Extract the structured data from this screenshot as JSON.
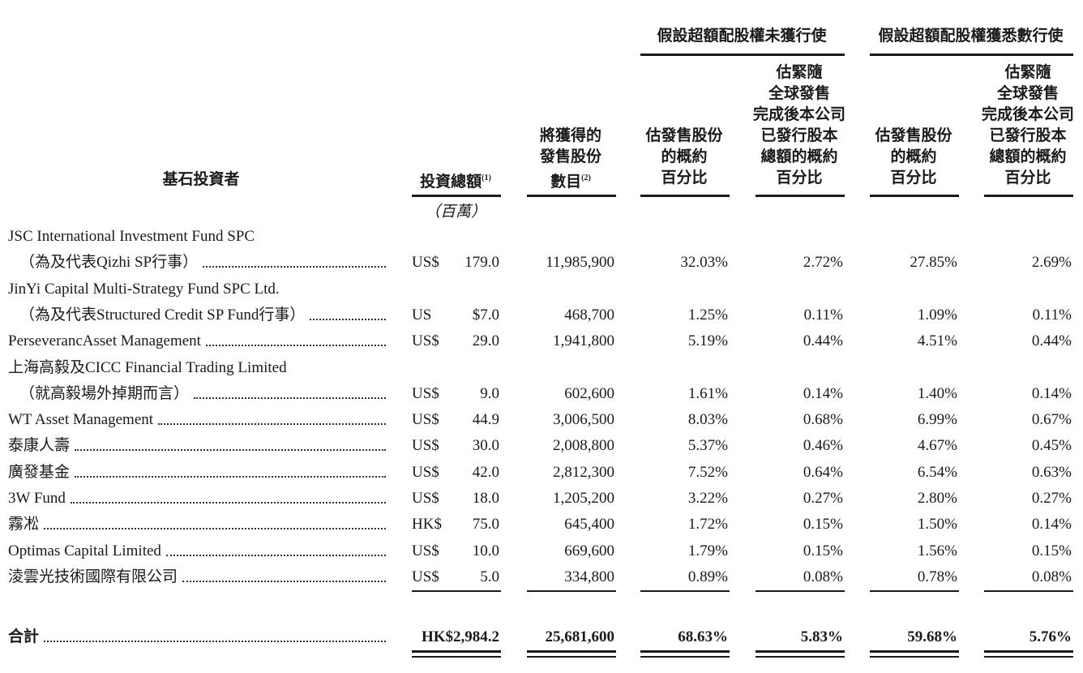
{
  "header": {
    "investor": "基石投資者",
    "amount": "投資總額",
    "amount_note": "(1)",
    "shares": [
      "將獲得的",
      "發售股份",
      "數目"
    ],
    "shares_note": "(2)",
    "unit": "（百萬）",
    "groups": [
      {
        "title": "假設超額配股權未獲行使",
        "columns": [
          [
            "估發售股份",
            "的概約",
            "百分比"
          ],
          [
            "估緊隨",
            "全球發售",
            "完成後本公司",
            "已發行股本",
            "總額的概約",
            "百分比"
          ]
        ]
      },
      {
        "title": "假設超額配股權獲悉數行使",
        "columns": [
          [
            "估發售股份",
            "的概約",
            "百分比"
          ],
          [
            "估緊隨",
            "全球發售",
            "完成後本公司",
            "已發行股本",
            "總額的概約",
            "百分比"
          ]
        ]
      }
    ]
  },
  "rows": [
    {
      "name": [
        "JSC International Investment Fund SPC",
        "（為及代表Qizhi SP行事）"
      ],
      "currency": "US$",
      "amount": "179.0",
      "shares": "11,985,900",
      "values": [
        "32.03%",
        "2.72%",
        "27.85%",
        "2.69%"
      ]
    },
    {
      "name": [
        "JinYi Capital Multi-Strategy Fund SPC Ltd.",
        "（為及代表Structured Credit SP Fund行事）"
      ],
      "currency": "US",
      "amount": "$7.0",
      "shares": "468,700",
      "values": [
        "1.25%",
        "0.11%",
        "1.09%",
        "0.11%"
      ]
    },
    {
      "name": [
        "PerseverancAsset Management"
      ],
      "currency": "US$",
      "amount": "29.0",
      "shares": "1,941,800",
      "values": [
        "5.19%",
        "0.44%",
        "4.51%",
        "0.44%"
      ]
    },
    {
      "name": [
        "上海高毅及CICC Financial Trading Limited",
        "（就高毅場外掉期而言）"
      ],
      "currency": "US$",
      "amount": "9.0",
      "shares": "602,600",
      "values": [
        "1.61%",
        "0.14%",
        "1.40%",
        "0.14%"
      ]
    },
    {
      "name": [
        "WT Asset Management"
      ],
      "currency": "US$",
      "amount": "44.9",
      "shares": "3,006,500",
      "values": [
        "8.03%",
        "0.68%",
        "6.99%",
        "0.67%"
      ]
    },
    {
      "name": [
        "泰康人壽"
      ],
      "currency": "US$",
      "amount": "30.0",
      "shares": "2,008,800",
      "values": [
        "5.37%",
        "0.46%",
        "4.67%",
        "0.45%"
      ]
    },
    {
      "name": [
        "廣發基金"
      ],
      "currency": "US$",
      "amount": "42.0",
      "shares": "2,812,300",
      "values": [
        "7.52%",
        "0.64%",
        "6.54%",
        "0.63%"
      ]
    },
    {
      "name": [
        "3W Fund"
      ],
      "currency": "US$",
      "amount": "18.0",
      "shares": "1,205,200",
      "values": [
        "3.22%",
        "0.27%",
        "2.80%",
        "0.27%"
      ]
    },
    {
      "name": [
        "霧凇"
      ],
      "currency": "HK$",
      "amount": "75.0",
      "shares": "645,400",
      "values": [
        "1.72%",
        "0.15%",
        "1.50%",
        "0.14%"
      ]
    },
    {
      "name": [
        "Optimas Capital Limited"
      ],
      "currency": "US$",
      "amount": "10.0",
      "shares": "669,600",
      "values": [
        "1.79%",
        "0.15%",
        "1.56%",
        "0.15%"
      ]
    },
    {
      "name": [
        "淩雲光技術國際有限公司"
      ],
      "currency": "US$",
      "amount": "5.0",
      "shares": "334,800",
      "values": [
        "0.89%",
        "0.08%",
        "0.78%",
        "0.08%"
      ]
    }
  ],
  "total": {
    "name": "合計",
    "amount": "HK$2,984.2",
    "shares": "25,681,600",
    "values": [
      "68.63%",
      "5.83%",
      "59.68%",
      "5.76%"
    ]
  }
}
